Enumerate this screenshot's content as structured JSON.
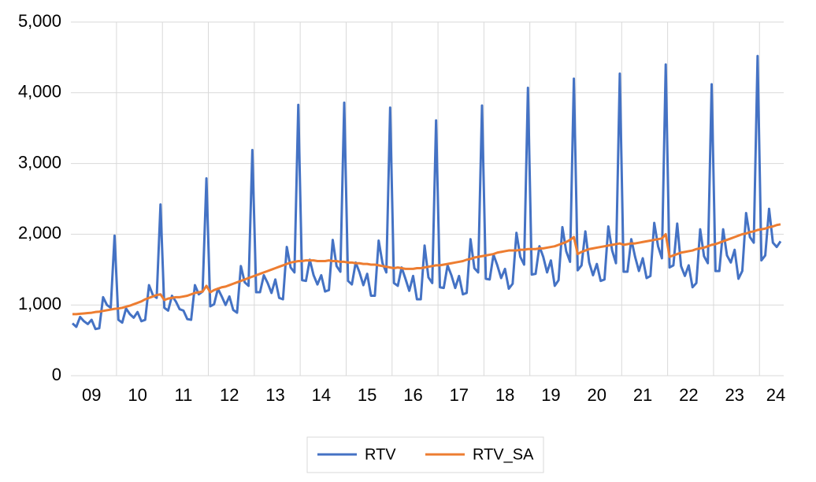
{
  "chart_data": {
    "type": "line",
    "categories": [
      null,
      null,
      null,
      null,
      null,
      "09",
      null,
      null,
      null,
      null,
      null,
      null,
      null,
      null,
      null,
      null,
      null,
      "10",
      null,
      null,
      null,
      null,
      null,
      null,
      null,
      null,
      null,
      null,
      null,
      "11",
      null,
      null,
      null,
      null,
      null,
      null,
      null,
      null,
      null,
      null,
      null,
      "12",
      null,
      null,
      null,
      null,
      null,
      null,
      null,
      null,
      null,
      null,
      null,
      "13",
      null,
      null,
      null,
      null,
      null,
      null,
      null,
      null,
      null,
      null,
      null,
      "14",
      null,
      null,
      null,
      null,
      null,
      null,
      null,
      null,
      null,
      null,
      null,
      "15",
      null,
      null,
      null,
      null,
      null,
      null,
      null,
      null,
      null,
      null,
      null,
      "16",
      null,
      null,
      null,
      null,
      null,
      null,
      null,
      null,
      null,
      null,
      null,
      "17",
      null,
      null,
      null,
      null,
      null,
      null,
      null,
      null,
      null,
      null,
      null,
      "18",
      null,
      null,
      null,
      null,
      null,
      null,
      null,
      null,
      null,
      null,
      null,
      "19",
      null,
      null,
      null,
      null,
      null,
      null,
      null,
      null,
      null,
      null,
      null,
      "20",
      null,
      null,
      null,
      null,
      null,
      null,
      null,
      null,
      null,
      null,
      null,
      "21",
      null,
      null,
      null,
      null,
      null,
      null,
      null,
      null,
      null,
      null,
      null,
      "22",
      null,
      null,
      null,
      null,
      null,
      null,
      null,
      null,
      null,
      null,
      null,
      "23",
      null,
      null,
      null,
      null,
      null,
      null,
      null,
      null,
      null,
      null,
      null,
      "24"
    ],
    "series": [
      {
        "name": "RTV",
        "color": "#4472c4",
        "values": [
          740,
          690,
          830,
          770,
          730,
          790,
          660,
          670,
          1110,
          1000,
          960,
          1980,
          790,
          750,
          950,
          870,
          820,
          900,
          770,
          790,
          1280,
          1140,
          1100,
          2420,
          960,
          920,
          1130,
          1050,
          940,
          920,
          800,
          790,
          1280,
          1150,
          1190,
          2790,
          980,
          1010,
          1230,
          1120,
          1000,
          1120,
          930,
          890,
          1550,
          1320,
          1270,
          3190,
          1180,
          1180,
          1420,
          1310,
          1170,
          1360,
          1100,
          1080,
          1820,
          1530,
          1460,
          3830,
          1350,
          1340,
          1640,
          1420,
          1290,
          1420,
          1190,
          1210,
          1920,
          1550,
          1470,
          3860,
          1340,
          1290,
          1600,
          1460,
          1280,
          1440,
          1130,
          1130,
          1910,
          1590,
          1460,
          3790,
          1310,
          1270,
          1530,
          1370,
          1200,
          1410,
          1080,
          1080,
          1840,
          1390,
          1310,
          3610,
          1250,
          1240,
          1560,
          1420,
          1240,
          1410,
          1150,
          1170,
          1930,
          1520,
          1460,
          3820,
          1370,
          1360,
          1710,
          1560,
          1380,
          1510,
          1230,
          1300,
          2020,
          1680,
          1570,
          4070,
          1430,
          1440,
          1830,
          1680,
          1460,
          1630,
          1270,
          1350,
          2100,
          1760,
          1610,
          4200,
          1490,
          1560,
          2040,
          1600,
          1420,
          1580,
          1340,
          1360,
          2110,
          1770,
          1590,
          4270,
          1470,
          1470,
          1930,
          1680,
          1480,
          1660,
          1380,
          1410,
          2160,
          1830,
          1660,
          4400,
          1530,
          1560,
          2150,
          1550,
          1410,
          1560,
          1250,
          1310,
          2070,
          1690,
          1590,
          4120,
          1480,
          1480,
          2070,
          1700,
          1600,
          1780,
          1370,
          1480,
          2300,
          1960,
          1880,
          4520,
          1630,
          1700,
          2360,
          1880,
          1820,
          1900
        ]
      },
      {
        "name": "RTV_SA",
        "color": "#ed7d31",
        "values": [
          870,
          870,
          875,
          880,
          885,
          890,
          900,
          905,
          915,
          925,
          935,
          945,
          950,
          960,
          975,
          990,
          1010,
          1030,
          1050,
          1080,
          1100,
          1120,
          1140,
          1150,
          1070,
          1090,
          1100,
          1110,
          1110,
          1120,
          1130,
          1150,
          1170,
          1180,
          1190,
          1270,
          1180,
          1210,
          1230,
          1250,
          1260,
          1280,
          1300,
          1320,
          1340,
          1360,
          1380,
          1400,
          1420,
          1440,
          1460,
          1480,
          1500,
          1520,
          1540,
          1560,
          1580,
          1600,
          1610,
          1620,
          1620,
          1630,
          1630,
          1630,
          1620,
          1620,
          1620,
          1630,
          1620,
          1620,
          1610,
          1610,
          1600,
          1600,
          1590,
          1590,
          1580,
          1580,
          1570,
          1570,
          1560,
          1550,
          1540,
          1530,
          1520,
          1530,
          1520,
          1510,
          1510,
          1510,
          1520,
          1520,
          1530,
          1540,
          1550,
          1560,
          1560,
          1570,
          1580,
          1590,
          1600,
          1610,
          1620,
          1640,
          1650,
          1670,
          1680,
          1690,
          1700,
          1710,
          1720,
          1740,
          1750,
          1760,
          1770,
          1770,
          1770,
          1780,
          1780,
          1790,
          1790,
          1790,
          1800,
          1800,
          1810,
          1820,
          1830,
          1850,
          1870,
          1890,
          1920,
          1960,
          1720,
          1750,
          1770,
          1790,
          1800,
          1810,
          1820,
          1830,
          1840,
          1850,
          1860,
          1870,
          1850,
          1860,
          1870,
          1870,
          1880,
          1890,
          1900,
          1910,
          1920,
          1930,
          1940,
          2000,
          1680,
          1700,
          1720,
          1740,
          1750,
          1760,
          1770,
          1790,
          1800,
          1810,
          1830,
          1850,
          1860,
          1880,
          1900,
          1920,
          1940,
          1960,
          1980,
          2000,
          2010,
          2030,
          2040,
          2060,
          2070,
          2080,
          2100,
          2110,
          2130,
          2140
        ]
      }
    ],
    "ylim": [
      0,
      5000
    ],
    "yticks": [
      0,
      {
        "value": 1000,
        "label": "1,000"
      },
      {
        "value": 2000,
        "label": "2,000"
      },
      {
        "value": 3000,
        "label": "3,000"
      },
      {
        "value": 4000,
        "label": "4,000"
      },
      {
        "value": 5000,
        "label": "5,000"
      }
    ],
    "grid": true,
    "xgrid": true,
    "legend": "bottom"
  }
}
